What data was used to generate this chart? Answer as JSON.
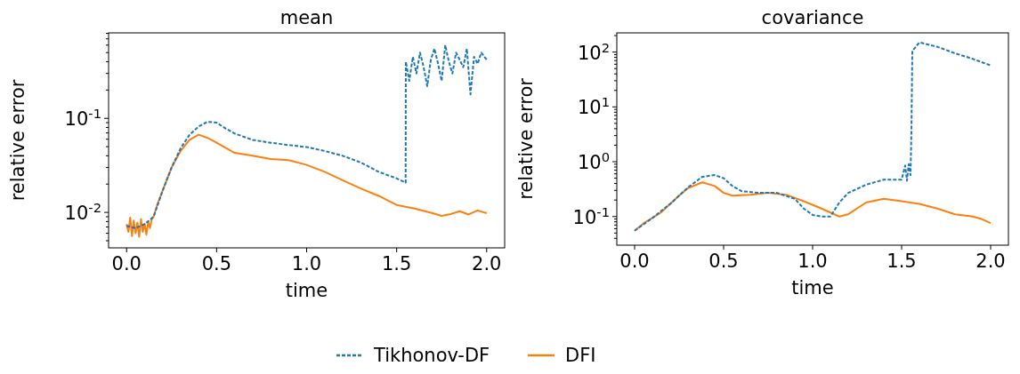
{
  "chart_data": [
    {
      "type": "line",
      "title": "mean",
      "xlabel": "time",
      "ylabel": "relative error",
      "log": "y",
      "grid": false,
      "legend": "bottom",
      "xlim": [
        -0.1,
        2.1
      ],
      "xticks": [
        {
          "value": 0,
          "label": "0.0"
        },
        {
          "value": 0.5,
          "label": "0.5"
        },
        {
          "value": 1,
          "label": "1.0"
        },
        {
          "value": 1.5,
          "label": "1.5"
        },
        {
          "value": 2,
          "label": "2.0"
        }
      ],
      "ylim": [
        0.0042,
        0.81
      ],
      "yticks": [
        {
          "value": 0.005,
          "label": null
        },
        {
          "value": 0.006,
          "label": null
        },
        {
          "value": 0.007,
          "label": null
        },
        {
          "value": 0.008,
          "label": null
        },
        {
          "value": 0.009,
          "label": null
        },
        {
          "value": 0.01,
          "label": "10$^{-2}$"
        },
        {
          "value": 0.02,
          "label": null
        },
        {
          "value": 0.03,
          "label": null
        },
        {
          "value": 0.04,
          "label": null
        },
        {
          "value": 0.05,
          "label": null
        },
        {
          "value": 0.06,
          "label": null
        },
        {
          "value": 0.07,
          "label": null
        },
        {
          "value": 0.08,
          "label": null
        },
        {
          "value": 0.09,
          "label": null
        },
        {
          "value": 0.1,
          "label": "10$^{-1}$"
        },
        {
          "value": 0.2,
          "label": null
        },
        {
          "value": 0.3,
          "label": null
        },
        {
          "value": 0.4,
          "label": null
        },
        {
          "value": 0.5,
          "label": null
        },
        {
          "value": 0.6,
          "label": null
        },
        {
          "value": 0.7,
          "label": null
        },
        {
          "value": 0.8,
          "label": null
        }
      ],
      "series": [
        {
          "name": "Tikhonov-DF",
          "color": "#1f77b4",
          "line_style": "dashed",
          "x": [
            0,
            0.05,
            0.1,
            0.15,
            0.2,
            0.25,
            0.3,
            0.35,
            0.4,
            0.45,
            0.5,
            0.55,
            0.6,
            0.7,
            0.8,
            0.9,
            1.0,
            1.1,
            1.2,
            1.3,
            1.4,
            1.5,
            1.55,
            1.551,
            1.57,
            1.59,
            1.61,
            1.63,
            1.65,
            1.67,
            1.69,
            1.71,
            1.73,
            1.75,
            1.77,
            1.79,
            1.81,
            1.83,
            1.85,
            1.87,
            1.89,
            1.91,
            1.93,
            1.95,
            1.97,
            2.0
          ],
          "values": [
            0.0072,
            0.0068,
            0.0075,
            0.009,
            0.017,
            0.03,
            0.048,
            0.067,
            0.082,
            0.092,
            0.09,
            0.078,
            0.069,
            0.059,
            0.055,
            0.052,
            0.0495,
            0.045,
            0.04,
            0.034,
            0.027,
            0.023,
            0.0207,
            0.4,
            0.25,
            0.45,
            0.3,
            0.5,
            0.35,
            0.22,
            0.42,
            0.55,
            0.38,
            0.25,
            0.6,
            0.4,
            0.3,
            0.5,
            0.42,
            0.35,
            0.55,
            0.18,
            0.45,
            0.38,
            0.5,
            0.42
          ]
        },
        {
          "name": "DFI",
          "color": "#ff7f0e",
          "line_style": "solid",
          "x": [
            0,
            0.01,
            0.02,
            0.03,
            0.04,
            0.05,
            0.06,
            0.07,
            0.08,
            0.09,
            0.1,
            0.11,
            0.12,
            0.13,
            0.14,
            0.15,
            0.17,
            0.2,
            0.25,
            0.3,
            0.35,
            0.4,
            0.45,
            0.5,
            0.6,
            0.7,
            0.8,
            0.9,
            1.0,
            1.1,
            1.2,
            1.3,
            1.4,
            1.5,
            1.6,
            1.7,
            1.75,
            1.8,
            1.85,
            1.9,
            1.95,
            2.0
          ],
          "values": [
            0.0075,
            0.0062,
            0.0088,
            0.0056,
            0.0082,
            0.006,
            0.0078,
            0.0055,
            0.0085,
            0.0062,
            0.0076,
            0.0058,
            0.008,
            0.0068,
            0.0085,
            0.009,
            0.012,
            0.017,
            0.03,
            0.045,
            0.059,
            0.067,
            0.062,
            0.055,
            0.043,
            0.04,
            0.037,
            0.036,
            0.032,
            0.027,
            0.022,
            0.018,
            0.015,
            0.012,
            0.011,
            0.0098,
            0.0092,
            0.0096,
            0.0103,
            0.0095,
            0.0105,
            0.0098
          ]
        }
      ]
    },
    {
      "type": "line",
      "title": "covariance",
      "xlabel": "time",
      "ylabel": "relative error",
      "log": "y",
      "grid": false,
      "legend": "bottom",
      "xlim": [
        -0.1,
        2.1
      ],
      "xticks": [
        {
          "value": 0,
          "label": "0.0"
        },
        {
          "value": 0.5,
          "label": "0.5"
        },
        {
          "value": 1,
          "label": "1.0"
        },
        {
          "value": 1.5,
          "label": "1.5"
        },
        {
          "value": 2,
          "label": "2.0"
        }
      ],
      "ylim": [
        0.03,
        224
      ],
      "yticks": [
        {
          "value": 0.04,
          "label": null
        },
        {
          "value": 0.05,
          "label": null
        },
        {
          "value": 0.06,
          "label": null
        },
        {
          "value": 0.07,
          "label": null
        },
        {
          "value": 0.08,
          "label": null
        },
        {
          "value": 0.09,
          "label": null
        },
        {
          "value": 0.1,
          "label": "10$^{-1}$"
        },
        {
          "value": 0.2,
          "label": null
        },
        {
          "value": 0.3,
          "label": null
        },
        {
          "value": 0.4,
          "label": null
        },
        {
          "value": 0.5,
          "label": null
        },
        {
          "value": 0.6,
          "label": null
        },
        {
          "value": 0.7,
          "label": null
        },
        {
          "value": 0.8,
          "label": null
        },
        {
          "value": 0.9,
          "label": null
        },
        {
          "value": 1,
          "label": "10$^{0}$"
        },
        {
          "value": 2,
          "label": null
        },
        {
          "value": 3,
          "label": null
        },
        {
          "value": 4,
          "label": null
        },
        {
          "value": 5,
          "label": null
        },
        {
          "value": 6,
          "label": null
        },
        {
          "value": 7,
          "label": null
        },
        {
          "value": 8,
          "label": null
        },
        {
          "value": 9,
          "label": null
        },
        {
          "value": 10,
          "label": "10$^{1}$"
        },
        {
          "value": 20,
          "label": null
        },
        {
          "value": 30,
          "label": null
        },
        {
          "value": 40,
          "label": null
        },
        {
          "value": 50,
          "label": null
        },
        {
          "value": 60,
          "label": null
        },
        {
          "value": 70,
          "label": null
        },
        {
          "value": 80,
          "label": null
        },
        {
          "value": 90,
          "label": null
        },
        {
          "value": 100,
          "label": "10$^{2}$"
        },
        {
          "value": 200,
          "label": null
        }
      ],
      "series": [
        {
          "name": "Tikhonov-DF",
          "color": "#1f77b4",
          "line_style": "dashed",
          "x": [
            0,
            0.1,
            0.2,
            0.3,
            0.38,
            0.45,
            0.5,
            0.55,
            0.6,
            0.7,
            0.8,
            0.9,
            0.95,
            1.0,
            1.05,
            1.1,
            1.15,
            1.2,
            1.3,
            1.4,
            1.5,
            1.52,
            1.53,
            1.54,
            1.55,
            1.555,
            1.56,
            1.6,
            1.7,
            1.8,
            1.9,
            2.0
          ],
          "values": [
            0.055,
            0.094,
            0.17,
            0.34,
            0.53,
            0.57,
            0.5,
            0.36,
            0.29,
            0.27,
            0.27,
            0.21,
            0.14,
            0.107,
            0.1,
            0.1,
            0.18,
            0.27,
            0.38,
            0.47,
            0.47,
            0.85,
            0.45,
            0.9,
            0.57,
            3.7,
            105,
            150,
            125,
            95,
            75,
            57
          ]
        },
        {
          "name": "DFI",
          "color": "#ff7f0e",
          "line_style": "solid",
          "x": [
            0,
            0.05,
            0.1,
            0.15,
            0.2,
            0.25,
            0.3,
            0.38,
            0.45,
            0.5,
            0.55,
            0.65,
            0.75,
            0.85,
            0.95,
            1.05,
            1.15,
            1.2,
            1.3,
            1.4,
            1.5,
            1.6,
            1.7,
            1.8,
            1.9,
            1.95,
            2.0
          ],
          "values": [
            0.055,
            0.075,
            0.094,
            0.12,
            0.17,
            0.24,
            0.33,
            0.42,
            0.36,
            0.27,
            0.24,
            0.25,
            0.27,
            0.25,
            0.19,
            0.14,
            0.1,
            0.11,
            0.18,
            0.21,
            0.19,
            0.17,
            0.14,
            0.11,
            0.1,
            0.09,
            0.076
          ]
        }
      ]
    }
  ]
}
